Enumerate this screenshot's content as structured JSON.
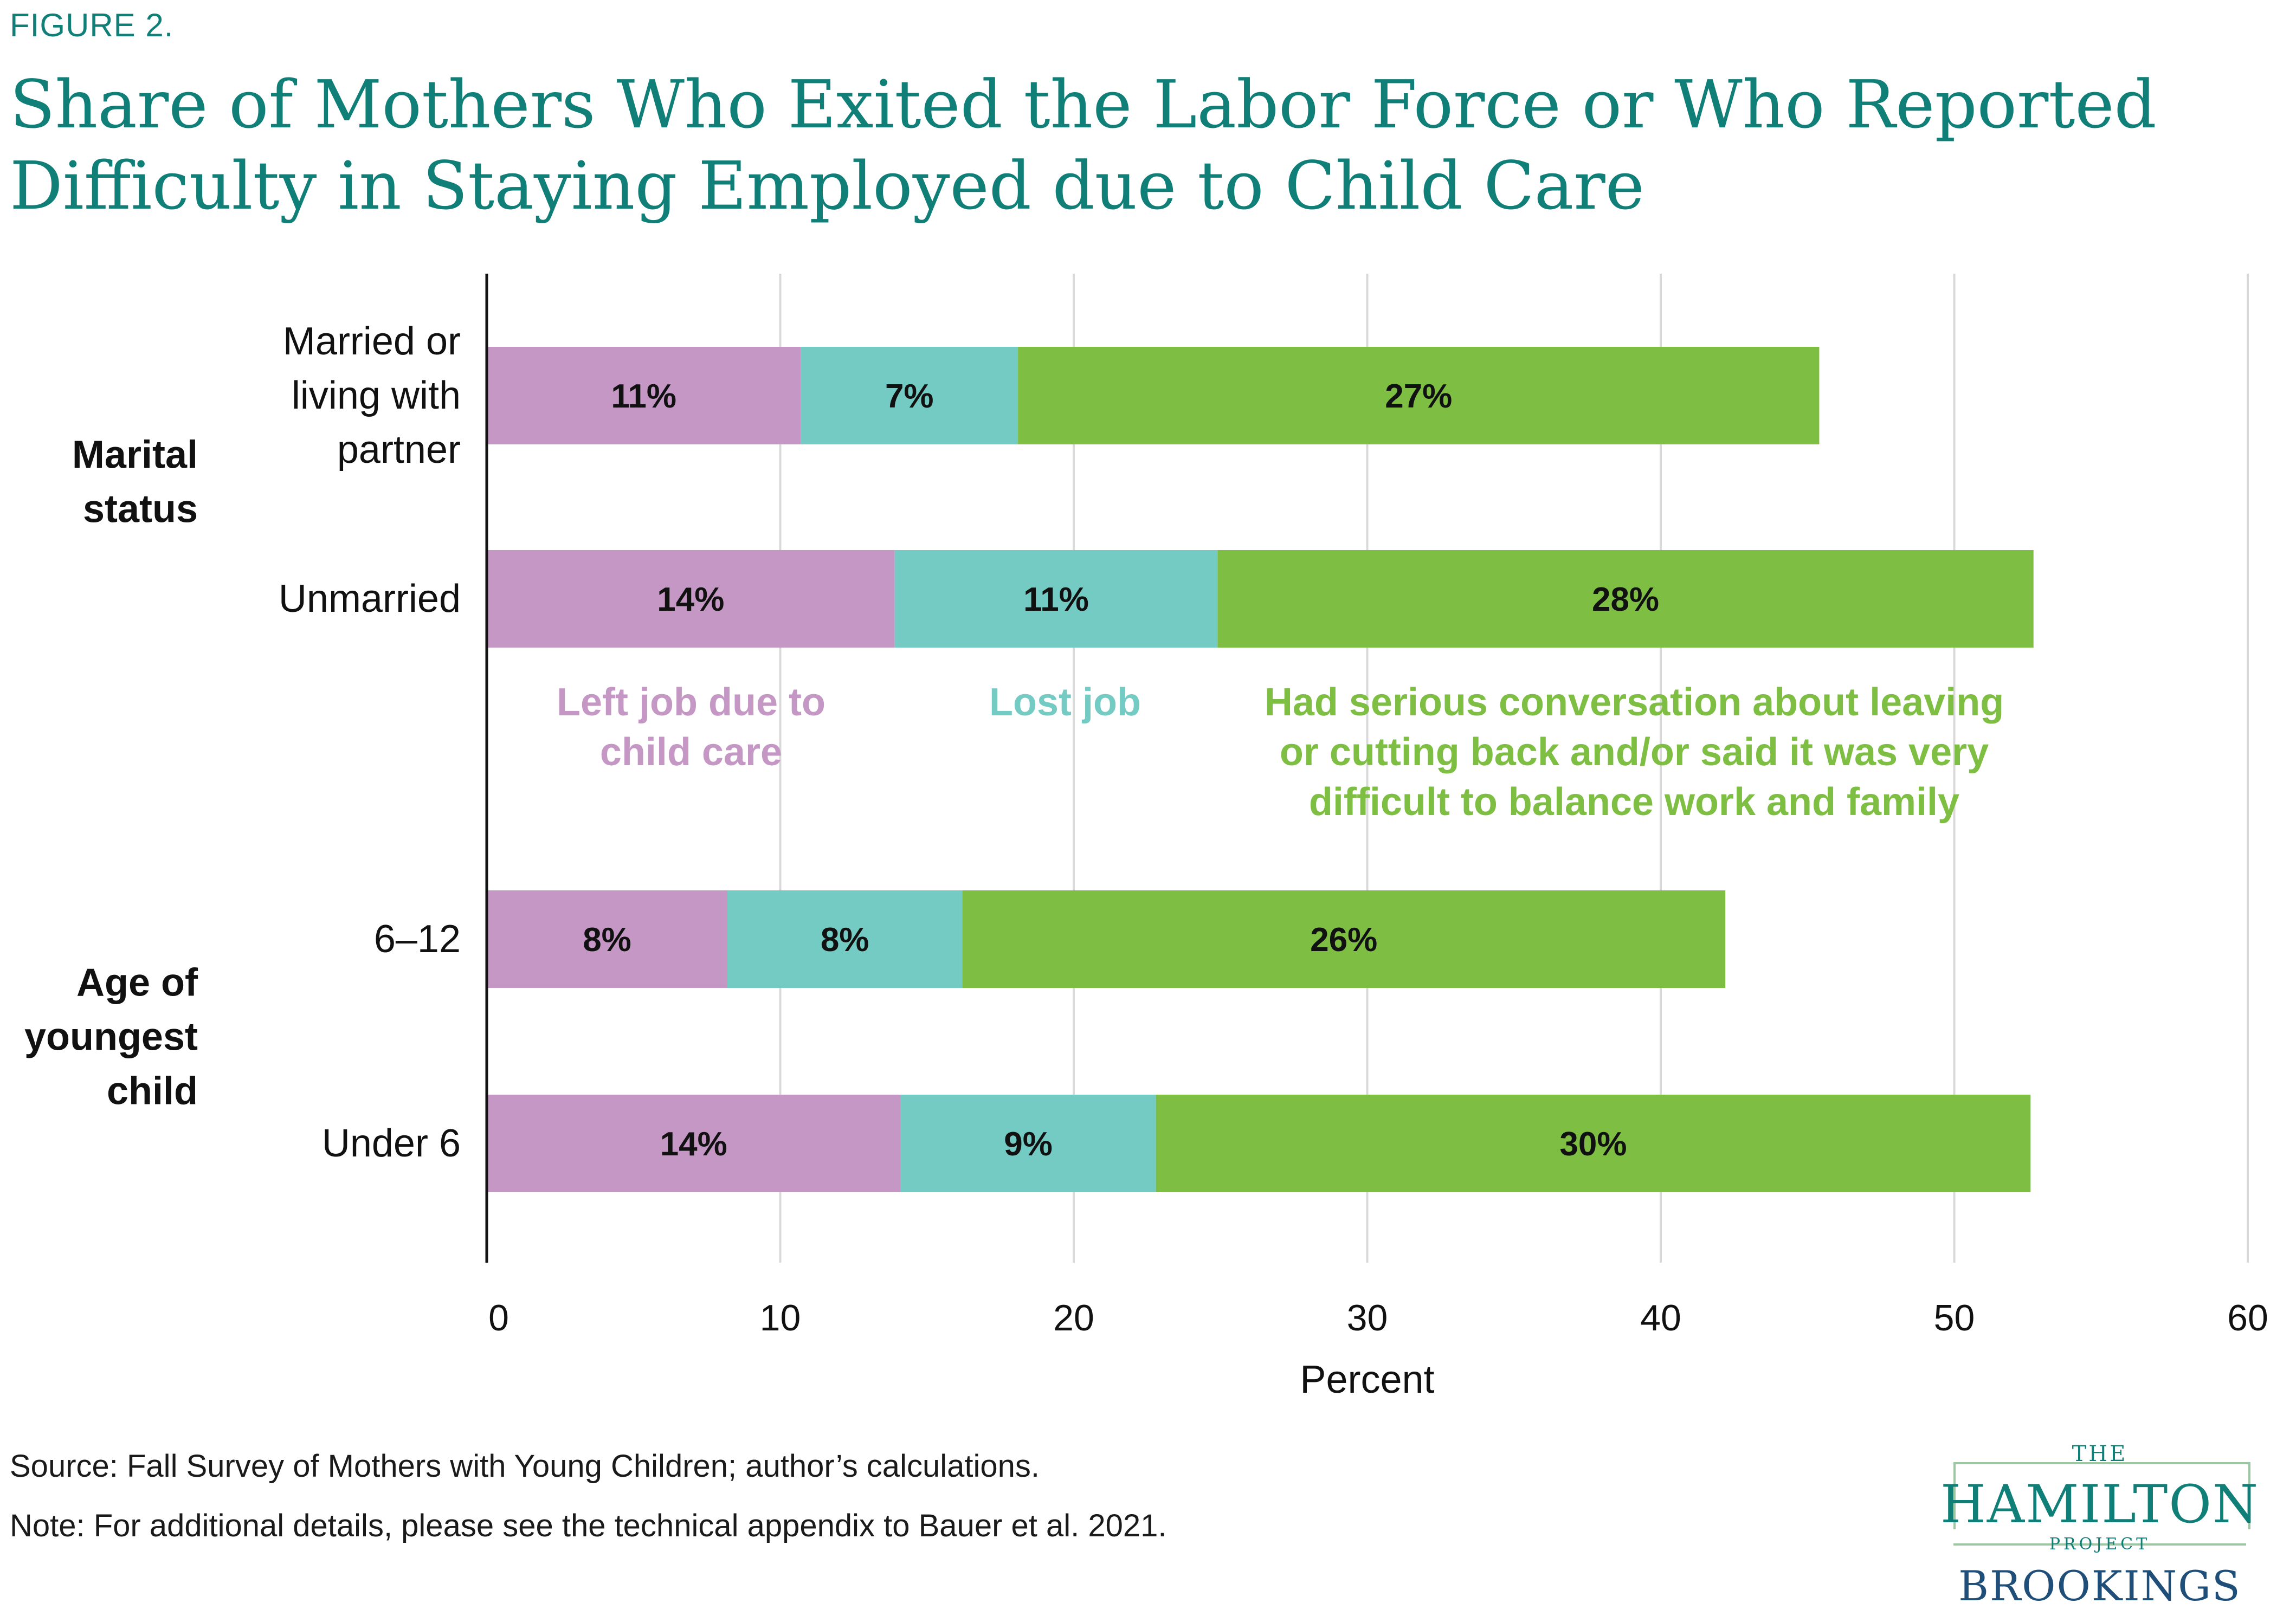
{
  "figure_label": "FIGURE 2.",
  "source": "Source: Fall Survey of Mothers with Young Children; author’s calculations.",
  "note": "Note: For additional details, please see the technical appendix to Bauer et al. 2021.",
  "logo": {
    "the": "THE",
    "hamilton": "HAMILTON",
    "project": "PROJECT",
    "brookings": "BROOKINGS"
  },
  "colors": {
    "left_job": "#c597c5",
    "lost_job": "#74cbc4",
    "serious": "#7ebe43",
    "title": "#0f7f78"
  },
  "chart_data": {
    "type": "bar",
    "orientation": "horizontal",
    "stacked": true,
    "title": "Share of Mothers Who Exited the Labor Force or Who Reported Difficulty in Staying Employed due to Child Care",
    "xlabel": "Percent",
    "xlim": [
      0,
      60
    ],
    "xticks": [
      0,
      10,
      20,
      30,
      40,
      50,
      60
    ],
    "grid": "vertical",
    "groups": [
      {
        "label": "Marital status",
        "categories": [
          "Married or living with partner",
          "Unmarried"
        ]
      },
      {
        "label": "Age of youngest child",
        "categories": [
          "6–12",
          "Under 6"
        ]
      }
    ],
    "categories": [
      "Married or living with partner",
      "Unmarried",
      "6–12",
      "Under 6"
    ],
    "series": [
      {
        "name": "Left job due to child care",
        "values": [
          10.7,
          13.9,
          8.2,
          14.1
        ],
        "labels": [
          "11%",
          "14%",
          "8%",
          "14%"
        ]
      },
      {
        "name": "Lost job",
        "values": [
          7.4,
          11.0,
          8.0,
          8.7
        ],
        "labels": [
          "7%",
          "11%",
          "8%",
          "9%"
        ]
      },
      {
        "name": "Had serious conversation about leaving or cutting back and/or said it was very difficult to balance work and family",
        "values": [
          27.3,
          27.8,
          26.0,
          29.8
        ],
        "labels": [
          "27%",
          "28%",
          "26%",
          "30%"
        ]
      }
    ]
  }
}
